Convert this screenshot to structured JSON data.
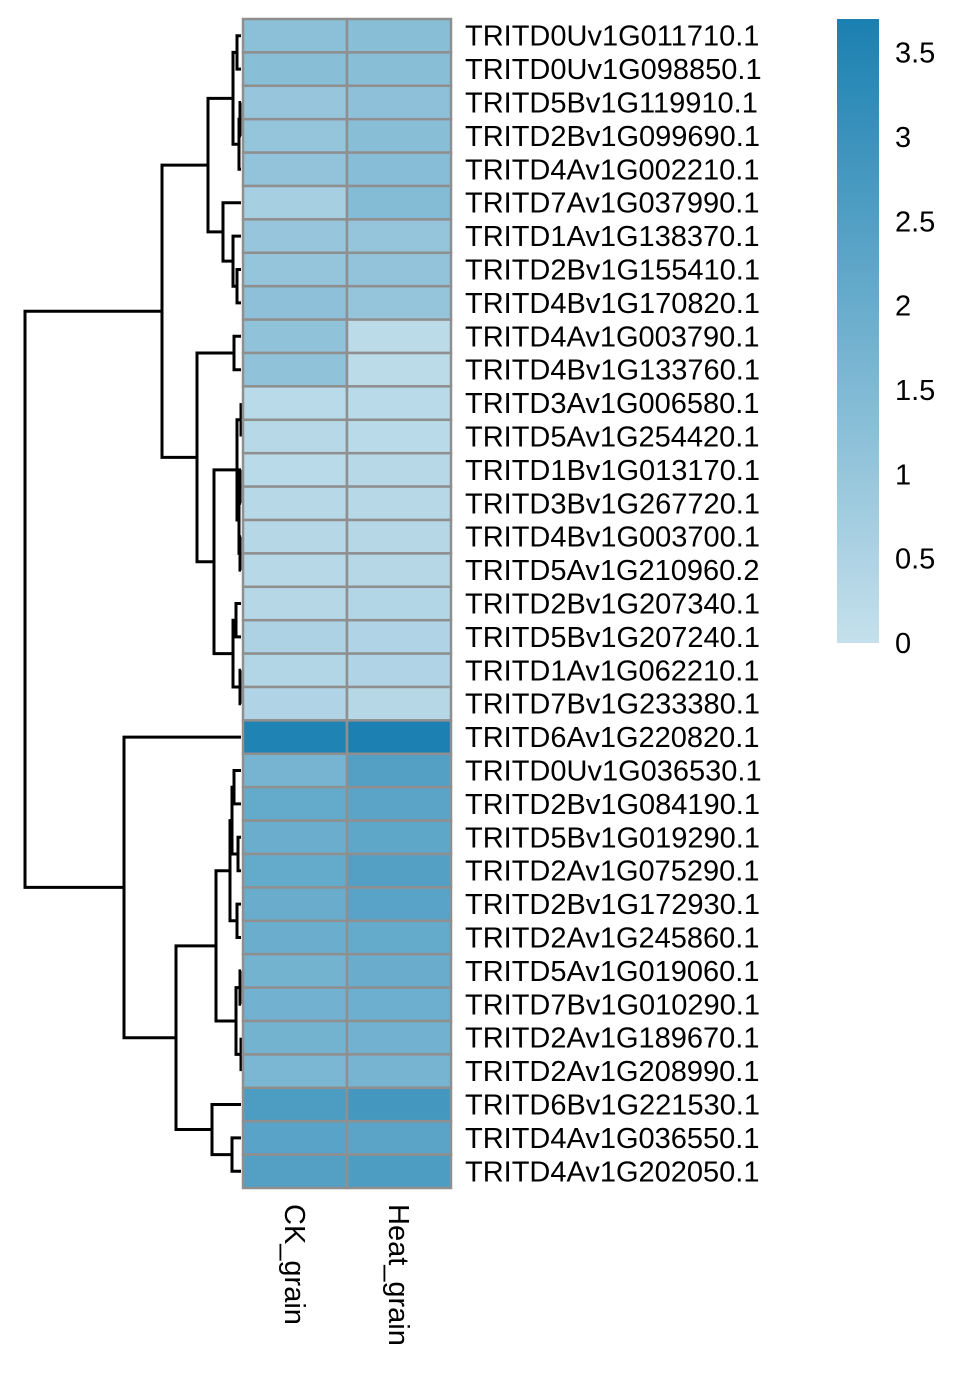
{
  "chart_data": {
    "type": "heatmap",
    "columns": [
      "CK_grain",
      "Heat_grain"
    ],
    "rows": [
      "TRITD0Uv1G011710.1",
      "TRITD0Uv1G098850.1",
      "TRITD5Bv1G119910.1",
      "TRITD2Bv1G099690.1",
      "TRITD4Av1G002210.1",
      "TRITD7Av1G037990.1",
      "TRITD1Av1G138370.1",
      "TRITD2Bv1G155410.1",
      "TRITD4Bv1G170820.1",
      "TRITD4Av1G003790.1",
      "TRITD4Bv1G133760.1",
      "TRITD3Av1G006580.1",
      "TRITD5Av1G254420.1",
      "TRITD1Bv1G013170.1",
      "TRITD3Bv1G267720.1",
      "TRITD4Bv1G003700.1",
      "TRITD5Av1G210960.2",
      "TRITD2Bv1G207340.1",
      "TRITD5Bv1G207240.1",
      "TRITD1Av1G062210.1",
      "TRITD7Bv1G233380.1",
      "TRITD6Av1G220820.1",
      "TRITD0Uv1G036530.1",
      "TRITD2Bv1G084190.1",
      "TRITD5Bv1G019290.1",
      "TRITD2Av1G075290.1",
      "TRITD2Bv1G172930.1",
      "TRITD2Av1G245860.1",
      "TRITD5Av1G019060.1",
      "TRITD7Bv1G010290.1",
      "TRITD2Av1G189670.1",
      "TRITD2Av1G208990.1",
      "TRITD6Bv1G221530.1",
      "TRITD4Av1G036550.1",
      "TRITD4Av1G202050.1"
    ],
    "values": [
      [
        1.25,
        1.3
      ],
      [
        1.3,
        1.3
      ],
      [
        1.0,
        1.2
      ],
      [
        1.05,
        1.3
      ],
      [
        1.1,
        1.35
      ],
      [
        0.65,
        1.4
      ],
      [
        1.0,
        1.05
      ],
      [
        1.05,
        1.1
      ],
      [
        1.2,
        1.05
      ],
      [
        1.15,
        0.2
      ],
      [
        1.15,
        0.2
      ],
      [
        0.25,
        0.25
      ],
      [
        0.3,
        0.25
      ],
      [
        0.25,
        0.3
      ],
      [
        0.3,
        0.3
      ],
      [
        0.35,
        0.35
      ],
      [
        0.3,
        0.35
      ],
      [
        0.35,
        0.4
      ],
      [
        0.55,
        0.45
      ],
      [
        0.4,
        0.45
      ],
      [
        0.45,
        0.35
      ],
      [
        3.6,
        3.65
      ],
      [
        1.7,
        2.45
      ],
      [
        2.1,
        2.3
      ],
      [
        1.95,
        2.2
      ],
      [
        2.1,
        2.45
      ],
      [
        2.0,
        2.35
      ],
      [
        1.95,
        2.1
      ],
      [
        1.75,
        2.0
      ],
      [
        1.8,
        1.9
      ],
      [
        1.75,
        1.8
      ],
      [
        1.6,
        1.7
      ],
      [
        2.6,
        2.8
      ],
      [
        2.35,
        2.3
      ],
      [
        2.45,
        2.6
      ]
    ],
    "colorbar": {
      "min": 0,
      "max": 3.7,
      "ticks": [
        0,
        0.5,
        1,
        1.5,
        2,
        2.5,
        3,
        3.5
      ],
      "tick_labels": [
        "0",
        "0.5",
        "1",
        "1.5",
        "2",
        "2.5",
        "3",
        "3.5"
      ],
      "low_color": "#c5e0ec",
      "high_color": "#1a80b1"
    },
    "cell_border_color": "#8f8f8f",
    "row_dendrogram": "left",
    "legend_placement": "top-right"
  }
}
